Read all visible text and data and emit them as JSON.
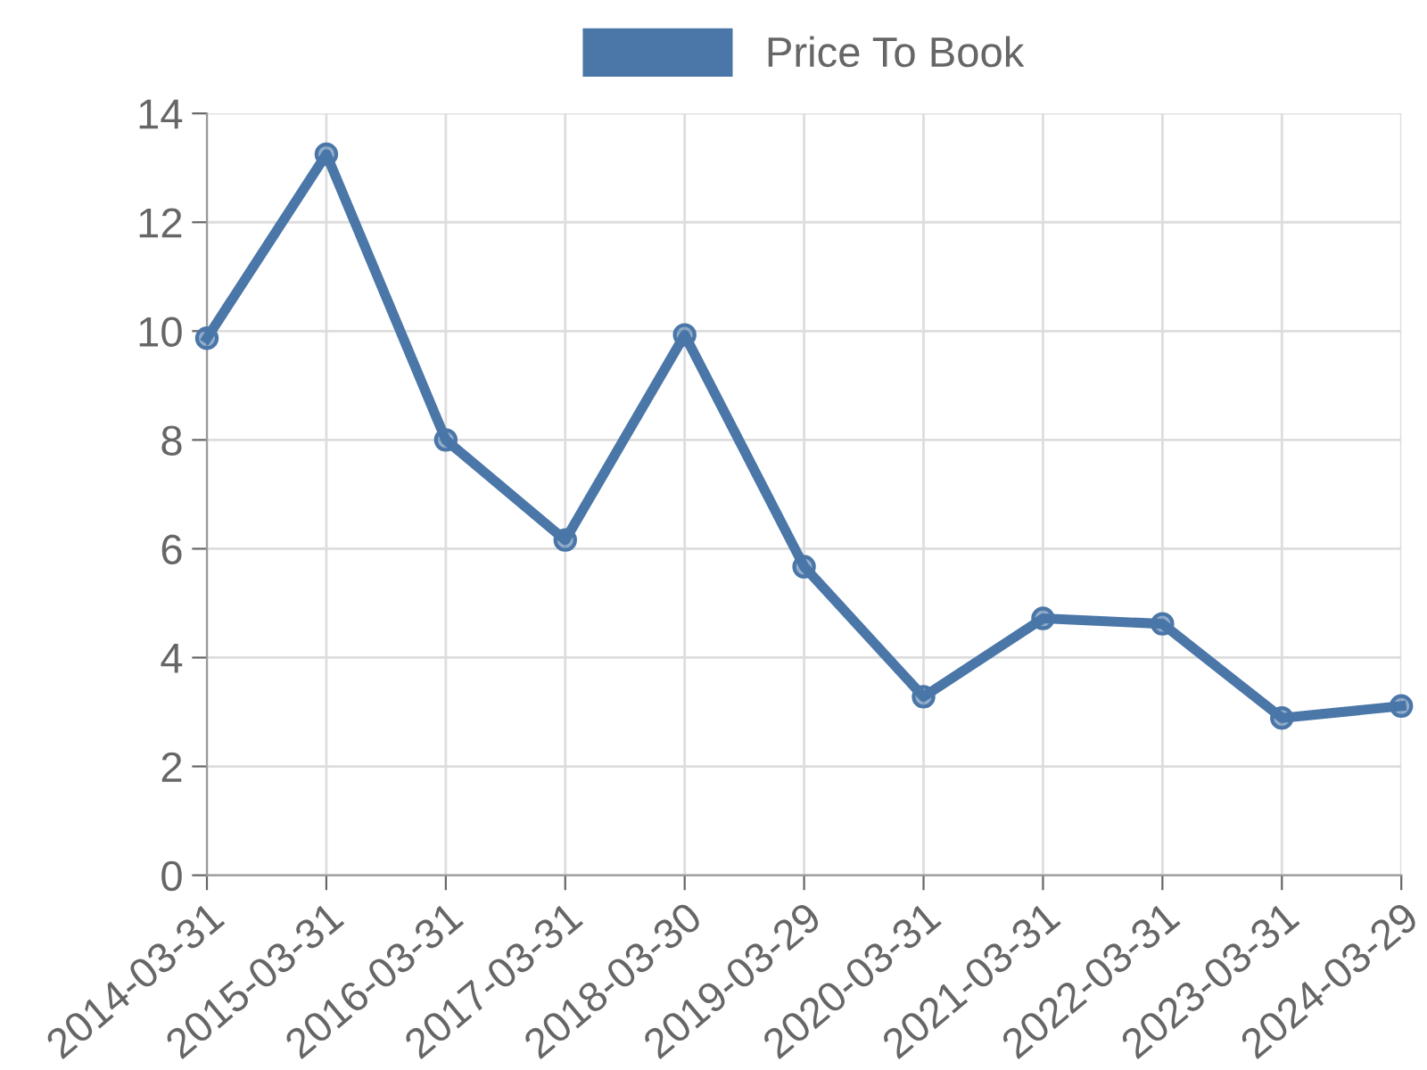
{
  "chart_data": {
    "type": "line",
    "categories": [
      "2014-03-31",
      "2015-03-31",
      "2016-03-31",
      "2017-03-31",
      "2018-03-30",
      "2019-03-29",
      "2020-03-31",
      "2021-03-31",
      "2022-03-31",
      "2023-03-31",
      "2024-03-29"
    ],
    "series": [
      {
        "name": "Price To Book",
        "color": "#4a76a8",
        "values": [
          9.87,
          13.25,
          8.0,
          6.16,
          9.93,
          5.67,
          3.28,
          4.72,
          4.62,
          2.89,
          3.11
        ]
      }
    ],
    "ylim": [
      0,
      14
    ],
    "yticks": [
      0,
      2,
      4,
      6,
      8,
      10,
      12,
      14
    ],
    "grid": true,
    "legend": "top",
    "marker": "circle",
    "line_style": "solid"
  }
}
